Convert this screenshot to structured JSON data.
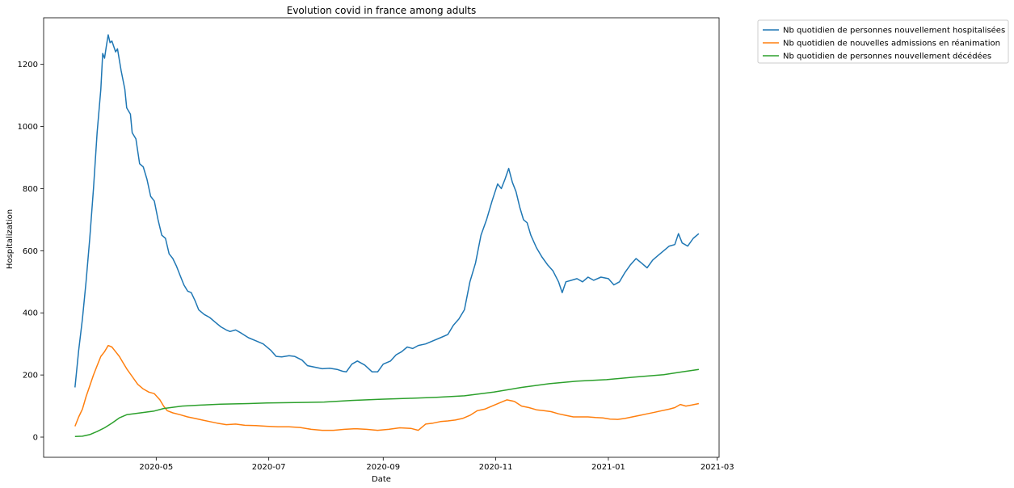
{
  "chart_data": {
    "type": "line",
    "title": "Evolution covid in france among adults",
    "xlabel": "Date",
    "ylabel": "Hospitalization",
    "x_range": [
      "2020-03-01",
      "2021-03-02"
    ],
    "x_ticks": [
      "2020-05",
      "2020-07",
      "2020-09",
      "2020-11",
      "2021-01",
      "2021-03"
    ],
    "ylim": [
      -65,
      1350
    ],
    "y_ticks": [
      0,
      200,
      400,
      600,
      800,
      1000,
      1200
    ],
    "grid": false,
    "legend_position": "outside-top-right",
    "series": [
      {
        "name": "Nb quotidien de personnes nouvellement hospitalisées",
        "color": "#1f77b4",
        "points": [
          [
            "2020-03-18",
            160
          ],
          [
            "2020-03-20",
            280
          ],
          [
            "2020-03-22",
            380
          ],
          [
            "2020-03-24",
            500
          ],
          [
            "2020-03-26",
            640
          ],
          [
            "2020-03-28",
            800
          ],
          [
            "2020-03-30",
            980
          ],
          [
            "2020-04-01",
            1120
          ],
          [
            "2020-04-02",
            1235
          ],
          [
            "2020-04-03",
            1220
          ],
          [
            "2020-04-04",
            1260
          ],
          [
            "2020-04-05",
            1295
          ],
          [
            "2020-04-06",
            1270
          ],
          [
            "2020-04-07",
            1275
          ],
          [
            "2020-04-09",
            1240
          ],
          [
            "2020-04-10",
            1250
          ],
          [
            "2020-04-12",
            1180
          ],
          [
            "2020-04-14",
            1120
          ],
          [
            "2020-04-15",
            1060
          ],
          [
            "2020-04-17",
            1040
          ],
          [
            "2020-04-18",
            980
          ],
          [
            "2020-04-20",
            960
          ],
          [
            "2020-04-22",
            880
          ],
          [
            "2020-04-24",
            870
          ],
          [
            "2020-04-26",
            830
          ],
          [
            "2020-04-28",
            775
          ],
          [
            "2020-04-30",
            760
          ],
          [
            "2020-05-02",
            700
          ],
          [
            "2020-05-04",
            650
          ],
          [
            "2020-05-06",
            640
          ],
          [
            "2020-05-08",
            590
          ],
          [
            "2020-05-10",
            575
          ],
          [
            "2020-05-12",
            550
          ],
          [
            "2020-05-14",
            520
          ],
          [
            "2020-05-16",
            490
          ],
          [
            "2020-05-18",
            470
          ],
          [
            "2020-05-20",
            465
          ],
          [
            "2020-05-22",
            440
          ],
          [
            "2020-05-24",
            410
          ],
          [
            "2020-05-27",
            395
          ],
          [
            "2020-05-30",
            385
          ],
          [
            "2020-06-02",
            370
          ],
          [
            "2020-06-05",
            355
          ],
          [
            "2020-06-08",
            345
          ],
          [
            "2020-06-10",
            340
          ],
          [
            "2020-06-13",
            345
          ],
          [
            "2020-06-16",
            335
          ],
          [
            "2020-06-20",
            320
          ],
          [
            "2020-06-24",
            310
          ],
          [
            "2020-06-28",
            300
          ],
          [
            "2020-07-02",
            280
          ],
          [
            "2020-07-05",
            260
          ],
          [
            "2020-07-08",
            258
          ],
          [
            "2020-07-12",
            262
          ],
          [
            "2020-07-15",
            260
          ],
          [
            "2020-07-19",
            248
          ],
          [
            "2020-07-22",
            230
          ],
          [
            "2020-07-26",
            225
          ],
          [
            "2020-07-30",
            220
          ],
          [
            "2020-08-03",
            222
          ],
          [
            "2020-08-07",
            218
          ],
          [
            "2020-08-10",
            212
          ],
          [
            "2020-08-12",
            210
          ],
          [
            "2020-08-15",
            235
          ],
          [
            "2020-08-18",
            245
          ],
          [
            "2020-08-22",
            232
          ],
          [
            "2020-08-26",
            210
          ],
          [
            "2020-08-29",
            210
          ],
          [
            "2020-09-01",
            235
          ],
          [
            "2020-09-05",
            245
          ],
          [
            "2020-09-08",
            265
          ],
          [
            "2020-09-11",
            275
          ],
          [
            "2020-09-14",
            290
          ],
          [
            "2020-09-17",
            285
          ],
          [
            "2020-09-20",
            295
          ],
          [
            "2020-09-24",
            300
          ],
          [
            "2020-09-28",
            310
          ],
          [
            "2020-10-02",
            320
          ],
          [
            "2020-10-06",
            330
          ],
          [
            "2020-10-09",
            360
          ],
          [
            "2020-10-12",
            380
          ],
          [
            "2020-10-15",
            410
          ],
          [
            "2020-10-18",
            500
          ],
          [
            "2020-10-21",
            560
          ],
          [
            "2020-10-24",
            650
          ],
          [
            "2020-10-27",
            700
          ],
          [
            "2020-10-30",
            760
          ],
          [
            "2020-11-02",
            815
          ],
          [
            "2020-11-04",
            800
          ],
          [
            "2020-11-06",
            830
          ],
          [
            "2020-11-08",
            865
          ],
          [
            "2020-11-10",
            820
          ],
          [
            "2020-11-12",
            790
          ],
          [
            "2020-11-14",
            740
          ],
          [
            "2020-11-16",
            700
          ],
          [
            "2020-11-18",
            690
          ],
          [
            "2020-11-20",
            650
          ],
          [
            "2020-11-23",
            610
          ],
          [
            "2020-11-26",
            580
          ],
          [
            "2020-11-29",
            555
          ],
          [
            "2020-12-02",
            535
          ],
          [
            "2020-12-05",
            500
          ],
          [
            "2020-12-07",
            465
          ],
          [
            "2020-12-09",
            500
          ],
          [
            "2020-12-12",
            505
          ],
          [
            "2020-12-15",
            510
          ],
          [
            "2020-12-18",
            500
          ],
          [
            "2020-12-21",
            515
          ],
          [
            "2020-12-24",
            505
          ],
          [
            "2020-12-28",
            515
          ],
          [
            "2021-01-01",
            510
          ],
          [
            "2021-01-04",
            490
          ],
          [
            "2021-01-07",
            500
          ],
          [
            "2021-01-10",
            530
          ],
          [
            "2021-01-13",
            555
          ],
          [
            "2021-01-16",
            575
          ],
          [
            "2021-01-19",
            560
          ],
          [
            "2021-01-22",
            545
          ],
          [
            "2021-01-25",
            570
          ],
          [
            "2021-01-28",
            585
          ],
          [
            "2021-01-31",
            600
          ],
          [
            "2021-02-03",
            615
          ],
          [
            "2021-02-06",
            620
          ],
          [
            "2021-02-08",
            655
          ],
          [
            "2021-02-10",
            625
          ],
          [
            "2021-02-13",
            615
          ],
          [
            "2021-02-16",
            640
          ],
          [
            "2021-02-19",
            655
          ]
        ]
      },
      {
        "name": "Nb quotidien de nouvelles admissions en réanimation",
        "color": "#ff7f0e",
        "points": [
          [
            "2020-03-18",
            35
          ],
          [
            "2020-03-20",
            65
          ],
          [
            "2020-03-22",
            90
          ],
          [
            "2020-03-24",
            130
          ],
          [
            "2020-03-26",
            165
          ],
          [
            "2020-03-28",
            200
          ],
          [
            "2020-03-30",
            230
          ],
          [
            "2020-04-01",
            260
          ],
          [
            "2020-04-03",
            275
          ],
          [
            "2020-04-05",
            295
          ],
          [
            "2020-04-07",
            290
          ],
          [
            "2020-04-09",
            275
          ],
          [
            "2020-04-11",
            260
          ],
          [
            "2020-04-13",
            240
          ],
          [
            "2020-04-15",
            220
          ],
          [
            "2020-04-18",
            195
          ],
          [
            "2020-04-21",
            170
          ],
          [
            "2020-04-24",
            155
          ],
          [
            "2020-04-27",
            145
          ],
          [
            "2020-04-30",
            140
          ],
          [
            "2020-05-03",
            120
          ],
          [
            "2020-05-05",
            100
          ],
          [
            "2020-05-07",
            85
          ],
          [
            "2020-05-10",
            78
          ],
          [
            "2020-05-14",
            72
          ],
          [
            "2020-05-18",
            65
          ],
          [
            "2020-05-22",
            60
          ],
          [
            "2020-05-26",
            55
          ],
          [
            "2020-05-30",
            50
          ],
          [
            "2020-06-03",
            45
          ],
          [
            "2020-06-08",
            40
          ],
          [
            "2020-06-13",
            42
          ],
          [
            "2020-06-18",
            38
          ],
          [
            "2020-06-24",
            37
          ],
          [
            "2020-06-30",
            35
          ],
          [
            "2020-07-06",
            33
          ],
          [
            "2020-07-12",
            33
          ],
          [
            "2020-07-18",
            31
          ],
          [
            "2020-07-24",
            25
          ],
          [
            "2020-07-30",
            22
          ],
          [
            "2020-08-05",
            22
          ],
          [
            "2020-08-11",
            25
          ],
          [
            "2020-08-17",
            27
          ],
          [
            "2020-08-23",
            25
          ],
          [
            "2020-08-29",
            22
          ],
          [
            "2020-09-04",
            25
          ],
          [
            "2020-09-10",
            30
          ],
          [
            "2020-09-16",
            28
          ],
          [
            "2020-09-20",
            22
          ],
          [
            "2020-09-24",
            42
          ],
          [
            "2020-09-28",
            45
          ],
          [
            "2020-10-02",
            50
          ],
          [
            "2020-10-06",
            52
          ],
          [
            "2020-10-10",
            55
          ],
          [
            "2020-10-14",
            60
          ],
          [
            "2020-10-18",
            70
          ],
          [
            "2020-10-22",
            85
          ],
          [
            "2020-10-26",
            90
          ],
          [
            "2020-10-30",
            100
          ],
          [
            "2020-11-03",
            110
          ],
          [
            "2020-11-07",
            120
          ],
          [
            "2020-11-11",
            115
          ],
          [
            "2020-11-15",
            100
          ],
          [
            "2020-11-19",
            95
          ],
          [
            "2020-11-23",
            88
          ],
          [
            "2020-11-27",
            85
          ],
          [
            "2020-12-01",
            82
          ],
          [
            "2020-12-05",
            75
          ],
          [
            "2020-12-09",
            70
          ],
          [
            "2020-12-13",
            65
          ],
          [
            "2020-12-17",
            65
          ],
          [
            "2020-12-21",
            65
          ],
          [
            "2020-12-25",
            63
          ],
          [
            "2020-12-29",
            62
          ],
          [
            "2021-01-02",
            58
          ],
          [
            "2021-01-06",
            57
          ],
          [
            "2021-01-10",
            60
          ],
          [
            "2021-01-14",
            65
          ],
          [
            "2021-01-18",
            70
          ],
          [
            "2021-01-22",
            75
          ],
          [
            "2021-01-26",
            80
          ],
          [
            "2021-01-30",
            85
          ],
          [
            "2021-02-03",
            90
          ],
          [
            "2021-02-06",
            95
          ],
          [
            "2021-02-09",
            105
          ],
          [
            "2021-02-12",
            100
          ],
          [
            "2021-02-15",
            103
          ],
          [
            "2021-02-19",
            108
          ]
        ]
      },
      {
        "name": "Nb quotidien de personnes nouvellement décédées",
        "color": "#2ca02c",
        "points": [
          [
            "2020-03-18",
            2
          ],
          [
            "2020-03-22",
            3
          ],
          [
            "2020-03-26",
            8
          ],
          [
            "2020-03-30",
            18
          ],
          [
            "2020-04-03",
            30
          ],
          [
            "2020-04-07",
            45
          ],
          [
            "2020-04-11",
            62
          ],
          [
            "2020-04-15",
            72
          ],
          [
            "2020-04-20",
            76
          ],
          [
            "2020-04-25",
            80
          ],
          [
            "2020-04-30",
            84
          ],
          [
            "2020-05-05",
            92
          ],
          [
            "2020-05-10",
            96
          ],
          [
            "2020-05-15",
            100
          ],
          [
            "2020-05-25",
            103
          ],
          [
            "2020-06-05",
            106
          ],
          [
            "2020-06-20",
            108
          ],
          [
            "2020-06-30",
            110
          ],
          [
            "2020-07-15",
            111
          ],
          [
            "2020-07-31",
            113
          ],
          [
            "2020-08-15",
            118
          ],
          [
            "2020-08-31",
            122
          ],
          [
            "2020-09-15",
            125
          ],
          [
            "2020-09-30",
            128
          ],
          [
            "2020-10-15",
            133
          ],
          [
            "2020-10-31",
            145
          ],
          [
            "2020-11-15",
            160
          ],
          [
            "2020-11-30",
            172
          ],
          [
            "2020-12-15",
            180
          ],
          [
            "2020-12-31",
            185
          ],
          [
            "2021-01-15",
            193
          ],
          [
            "2021-01-31",
            201
          ],
          [
            "2021-02-10",
            210
          ],
          [
            "2021-02-19",
            218
          ]
        ]
      }
    ]
  }
}
